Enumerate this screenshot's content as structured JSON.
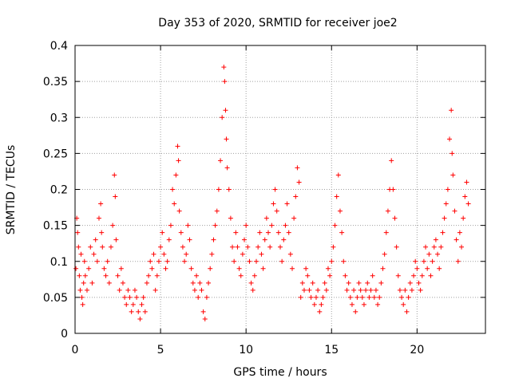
{
  "chart_data": {
    "type": "scatter",
    "title": "Day 353 of 2020, SRMTID for receiver joe2",
    "xlabel": "GPS time / hours",
    "ylabel": "SRMTID / TECUs",
    "xlim": [
      0,
      24
    ],
    "ylim": [
      0,
      0.4
    ],
    "xticks": [
      0,
      5,
      10,
      15,
      20
    ],
    "xtick_labels": [
      "0",
      "5",
      "10",
      "15",
      "20"
    ],
    "yticks": [
      0,
      0.05,
      0.1,
      0.15,
      0.2,
      0.25,
      0.3,
      0.35,
      0.4
    ],
    "ytick_labels": [
      "0",
      "0.05",
      "0.1",
      "0.15",
      "0.2",
      "0.25",
      "0.3",
      "0.35",
      "0.4"
    ],
    "grid": true,
    "marker": "+",
    "color": "#ff0000",
    "series": [
      {
        "name": "SRMTID",
        "x": [
          0.05,
          0.1,
          0.15,
          0.2,
          0.25,
          0.3,
          0.35,
          0.4,
          0.45,
          0.5,
          0.55,
          0.6,
          0.7,
          0.8,
          0.9,
          1.0,
          1.1,
          1.2,
          1.3,
          1.4,
          1.5,
          1.55,
          1.6,
          1.7,
          1.8,
          1.9,
          2.0,
          2.1,
          2.2,
          2.3,
          2.35,
          2.4,
          2.5,
          2.6,
          2.7,
          2.8,
          2.9,
          3.0,
          3.1,
          3.2,
          3.3,
          3.4,
          3.5,
          3.6,
          3.7,
          3.8,
          3.9,
          4.0,
          4.1,
          4.2,
          4.3,
          4.4,
          4.5,
          4.6,
          4.7,
          4.8,
          4.9,
          5.0,
          5.1,
          5.2,
          5.3,
          5.4,
          5.5,
          5.6,
          5.7,
          5.8,
          5.9,
          6.0,
          6.05,
          6.1,
          6.2,
          6.3,
          6.4,
          6.5,
          6.6,
          6.7,
          6.8,
          6.9,
          7.0,
          7.1,
          7.2,
          7.3,
          7.4,
          7.5,
          7.6,
          7.7,
          7.8,
          7.9,
          8.0,
          8.1,
          8.2,
          8.3,
          8.4,
          8.5,
          8.6,
          8.7,
          8.75,
          8.8,
          8.85,
          8.9,
          9.0,
          9.1,
          9.2,
          9.3,
          9.4,
          9.5,
          9.6,
          9.7,
          9.8,
          9.9,
          10.0,
          10.1,
          10.2,
          10.3,
          10.4,
          10.5,
          10.6,
          10.7,
          10.8,
          10.9,
          11.0,
          11.1,
          11.2,
          11.3,
          11.4,
          11.5,
          11.6,
          11.7,
          11.8,
          11.9,
          12.0,
          12.1,
          12.2,
          12.3,
          12.4,
          12.5,
          12.6,
          12.7,
          12.8,
          12.9,
          13.0,
          13.1,
          13.2,
          13.3,
          13.4,
          13.5,
          13.6,
          13.7,
          13.8,
          13.9,
          14.0,
          14.1,
          14.2,
          14.3,
          14.4,
          14.5,
          14.6,
          14.7,
          14.8,
          14.9,
          15.0,
          15.1,
          15.2,
          15.3,
          15.4,
          15.5,
          15.6,
          15.7,
          15.8,
          15.9,
          16.0,
          16.1,
          16.2,
          16.3,
          16.4,
          16.5,
          16.6,
          16.7,
          16.8,
          16.9,
          17.0,
          17.1,
          17.2,
          17.3,
          17.4,
          17.5,
          17.6,
          17.7,
          17.8,
          17.9,
          18.0,
          18.1,
          18.2,
          18.3,
          18.4,
          18.5,
          18.6,
          18.7,
          18.8,
          18.9,
          19.0,
          19.1,
          19.2,
          19.3,
          19.4,
          19.5,
          19.6,
          19.7,
          19.8,
          19.9,
          20.0,
          20.1,
          20.2,
          20.3,
          20.4,
          20.5,
          20.6,
          20.7,
          20.8,
          20.9,
          21.0,
          21.1,
          21.2,
          21.3,
          21.4,
          21.5,
          21.6,
          21.7,
          21.8,
          21.9,
          22.0,
          22.05,
          22.1,
          22.2,
          22.3,
          22.4,
          22.5,
          22.6,
          22.7,
          22.8,
          22.9,
          23.0
        ],
        "y": [
          0.09,
          0.16,
          0.14,
          0.12,
          0.08,
          0.06,
          0.11,
          0.05,
          0.04,
          0.07,
          0.1,
          0.08,
          0.06,
          0.09,
          0.12,
          0.07,
          0.11,
          0.13,
          0.1,
          0.16,
          0.18,
          0.14,
          0.12,
          0.09,
          0.08,
          0.1,
          0.07,
          0.12,
          0.15,
          0.22,
          0.19,
          0.13,
          0.08,
          0.06,
          0.09,
          0.07,
          0.05,
          0.04,
          0.06,
          0.05,
          0.03,
          0.04,
          0.06,
          0.05,
          0.03,
          0.02,
          0.04,
          0.05,
          0.03,
          0.07,
          0.08,
          0.1,
          0.09,
          0.11,
          0.06,
          0.08,
          0.1,
          0.12,
          0.14,
          0.11,
          0.09,
          0.1,
          0.13,
          0.15,
          0.2,
          0.18,
          0.22,
          0.26,
          0.24,
          0.17,
          0.14,
          0.12,
          0.1,
          0.11,
          0.15,
          0.13,
          0.09,
          0.07,
          0.06,
          0.08,
          0.05,
          0.07,
          0.06,
          0.03,
          0.02,
          0.05,
          0.07,
          0.09,
          0.11,
          0.13,
          0.15,
          0.17,
          0.2,
          0.24,
          0.3,
          0.37,
          0.35,
          0.31,
          0.27,
          0.23,
          0.2,
          0.16,
          0.12,
          0.1,
          0.14,
          0.12,
          0.09,
          0.08,
          0.11,
          0.13,
          0.15,
          0.12,
          0.1,
          0.07,
          0.06,
          0.08,
          0.1,
          0.12,
          0.14,
          0.11,
          0.09,
          0.13,
          0.16,
          0.14,
          0.12,
          0.15,
          0.18,
          0.2,
          0.17,
          0.14,
          0.12,
          0.1,
          0.13,
          0.15,
          0.18,
          0.14,
          0.11,
          0.09,
          0.16,
          0.19,
          0.23,
          0.21,
          0.05,
          0.07,
          0.06,
          0.09,
          0.08,
          0.06,
          0.05,
          0.07,
          0.04,
          0.05,
          0.06,
          0.03,
          0.04,
          0.05,
          0.07,
          0.06,
          0.09,
          0.08,
          0.1,
          0.12,
          0.15,
          0.19,
          0.22,
          0.17,
          0.14,
          0.1,
          0.08,
          0.06,
          0.07,
          0.05,
          0.04,
          0.06,
          0.03,
          0.05,
          0.07,
          0.06,
          0.05,
          0.04,
          0.06,
          0.07,
          0.05,
          0.06,
          0.08,
          0.05,
          0.06,
          0.04,
          0.05,
          0.07,
          0.09,
          0.11,
          0.14,
          0.17,
          0.2,
          0.24,
          0.2,
          0.16,
          0.12,
          0.08,
          0.06,
          0.05,
          0.04,
          0.06,
          0.03,
          0.05,
          0.07,
          0.06,
          0.08,
          0.1,
          0.09,
          0.07,
          0.06,
          0.08,
          0.1,
          0.12,
          0.09,
          0.11,
          0.08,
          0.1,
          0.12,
          0.13,
          0.11,
          0.09,
          0.12,
          0.14,
          0.16,
          0.18,
          0.2,
          0.27,
          0.31,
          0.25,
          0.22,
          0.17,
          0.13,
          0.1,
          0.14,
          0.12,
          0.16,
          0.19,
          0.21,
          0.18
        ]
      }
    ]
  }
}
